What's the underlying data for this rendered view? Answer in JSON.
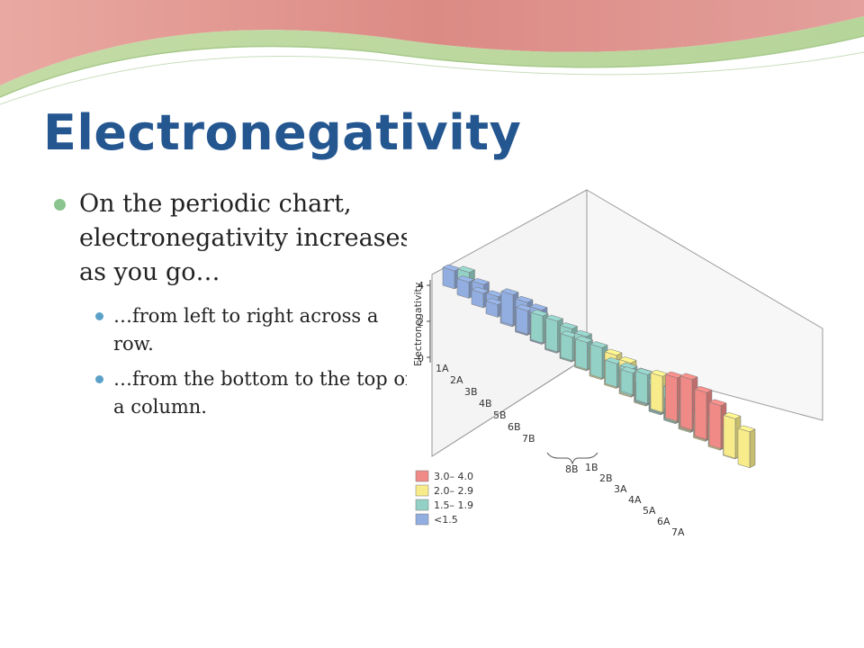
{
  "slide": {
    "title": "Electronegativity",
    "bullet_main": "On the periodic chart, electronegativity increases as you go…",
    "sub_bullets": [
      {
        "text": "…from left to right across a row."
      },
      {
        "text": "…from the bottom to the top of a column."
      }
    ]
  },
  "figure": {
    "axis_label": "Electronegativity",
    "axis_ticks": [
      "0",
      "2",
      "4"
    ],
    "group_labels_left": [
      "1A",
      "2A",
      "3B",
      "4B",
      "5B",
      "6B",
      "7B"
    ],
    "group_label_8b": "8B",
    "group_labels_right": [
      "1B",
      "2B",
      "3A",
      "4A",
      "5A",
      "6A",
      "7A"
    ],
    "legend": [
      {
        "label": "3.0– 4.0",
        "color": "#f08a86"
      },
      {
        "label": "2.0– 2.9",
        "color": "#f8ec8a"
      },
      {
        "label": "1.5– 1.9",
        "color": "#93d0c6"
      },
      {
        "label": "<1.5",
        "color": "#92aee0"
      }
    ]
  }
}
